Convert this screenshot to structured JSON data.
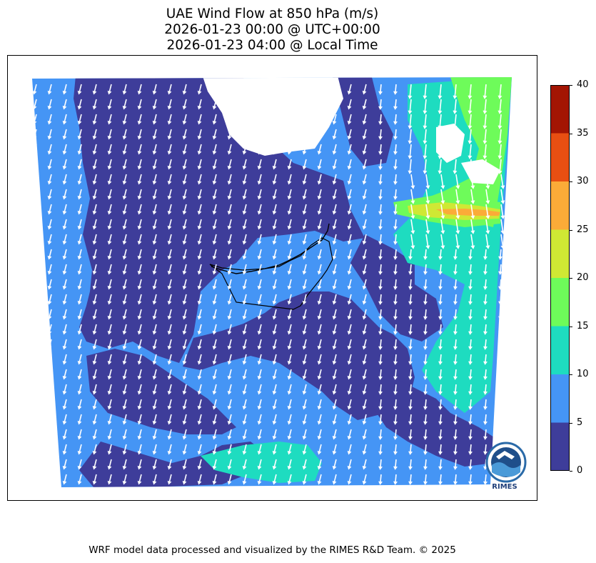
{
  "title": {
    "line1": "UAE Wind Flow at 850 hPa (m/s)",
    "line2": "2026-01-23 00:00 @ UTC+00:00",
    "line3": "2026-01-23 04:00 @ Local Time"
  },
  "colorbar": {
    "ticks": [
      "0",
      "5",
      "10",
      "15",
      "20",
      "25",
      "30",
      "35",
      "40"
    ],
    "colors": [
      "#3e3d9a",
      "#4595f5",
      "#1edcc0",
      "#6efb5a",
      "#cfe834",
      "#fbab38",
      "#e84f12",
      "#a31503"
    ]
  },
  "logo": {
    "text": "RIMES"
  },
  "footer": "WRF model data processed and visualized by the RIMES R&D Team. © 2025",
  "map": {
    "region": "UAE",
    "prevailing_wind": "from north to south",
    "arrow_color": "#ffffff"
  }
}
